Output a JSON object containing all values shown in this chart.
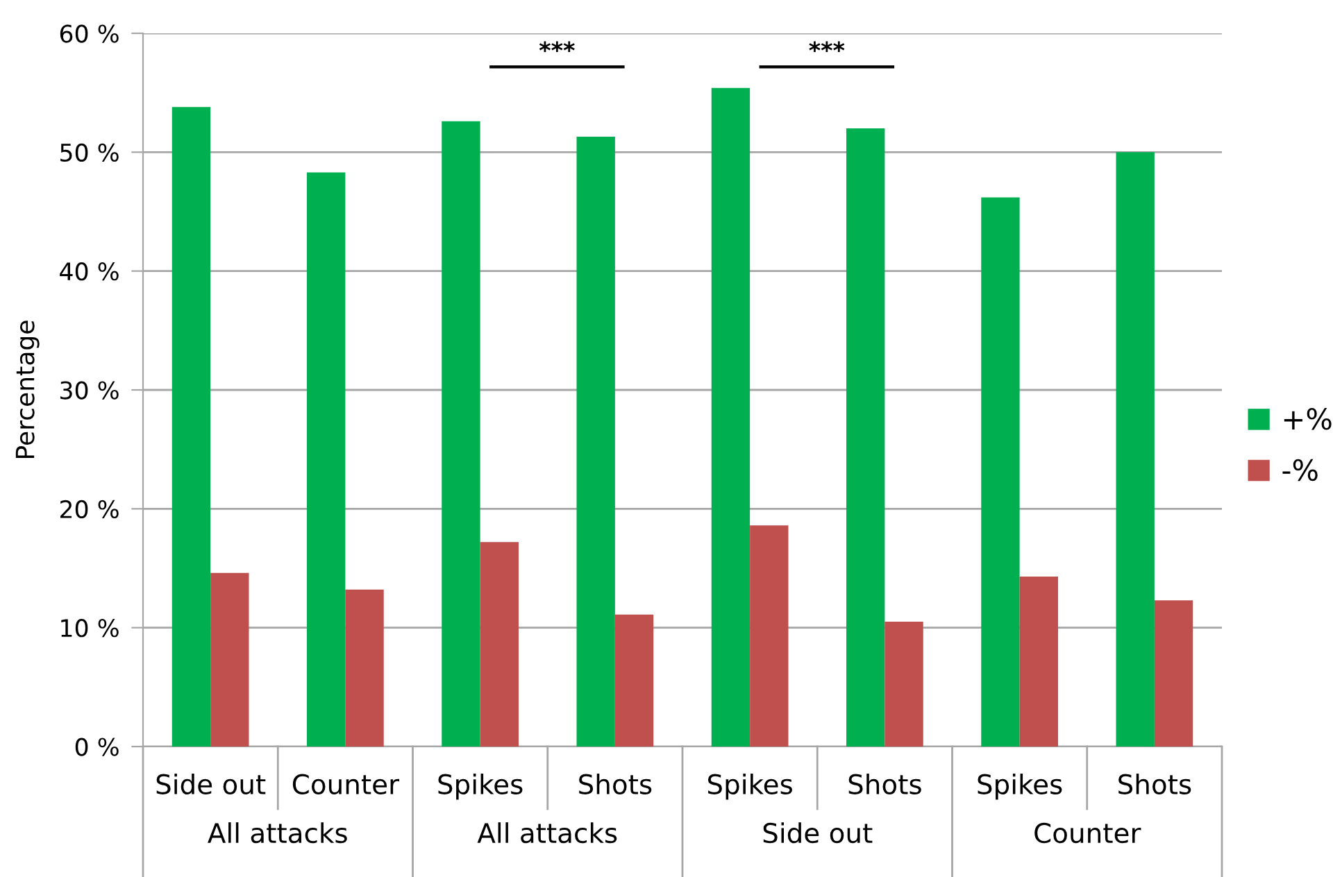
{
  "chart_data": {
    "type": "bar",
    "ylabel": "Percentage",
    "categories": [
      "Side out",
      "Counter",
      "Spikes",
      "Shots",
      "Spikes",
      "Shots",
      "Spikes",
      "Shots"
    ],
    "series": [
      {
        "name": "+%",
        "color": "#00b050",
        "values": [
          53.8,
          48.3,
          52.6,
          51.3,
          55.4,
          52.0,
          46.2,
          50.0
        ]
      },
      {
        "name": "-%",
        "color": "#c0504d",
        "values": [
          14.6,
          13.2,
          17.2,
          11.1,
          18.6,
          10.5,
          14.3,
          12.3
        ]
      }
    ],
    "ylim": [
      0,
      60
    ],
    "yticks": [
      {
        "value": 0,
        "label": "0 %"
      },
      {
        "value": 10,
        "label": "10 %"
      },
      {
        "value": 20,
        "label": "20 %"
      },
      {
        "value": 30,
        "label": "30 %"
      },
      {
        "value": 40,
        "label": "40 %"
      },
      {
        "value": 50,
        "label": "50 %"
      },
      {
        "value": 60,
        "label": "60 %"
      }
    ],
    "grid": "y",
    "legend": "right",
    "annotations": [
      "***",
      "***",
      "All attacks",
      "All attacks",
      "Side out",
      "Counter"
    ]
  }
}
